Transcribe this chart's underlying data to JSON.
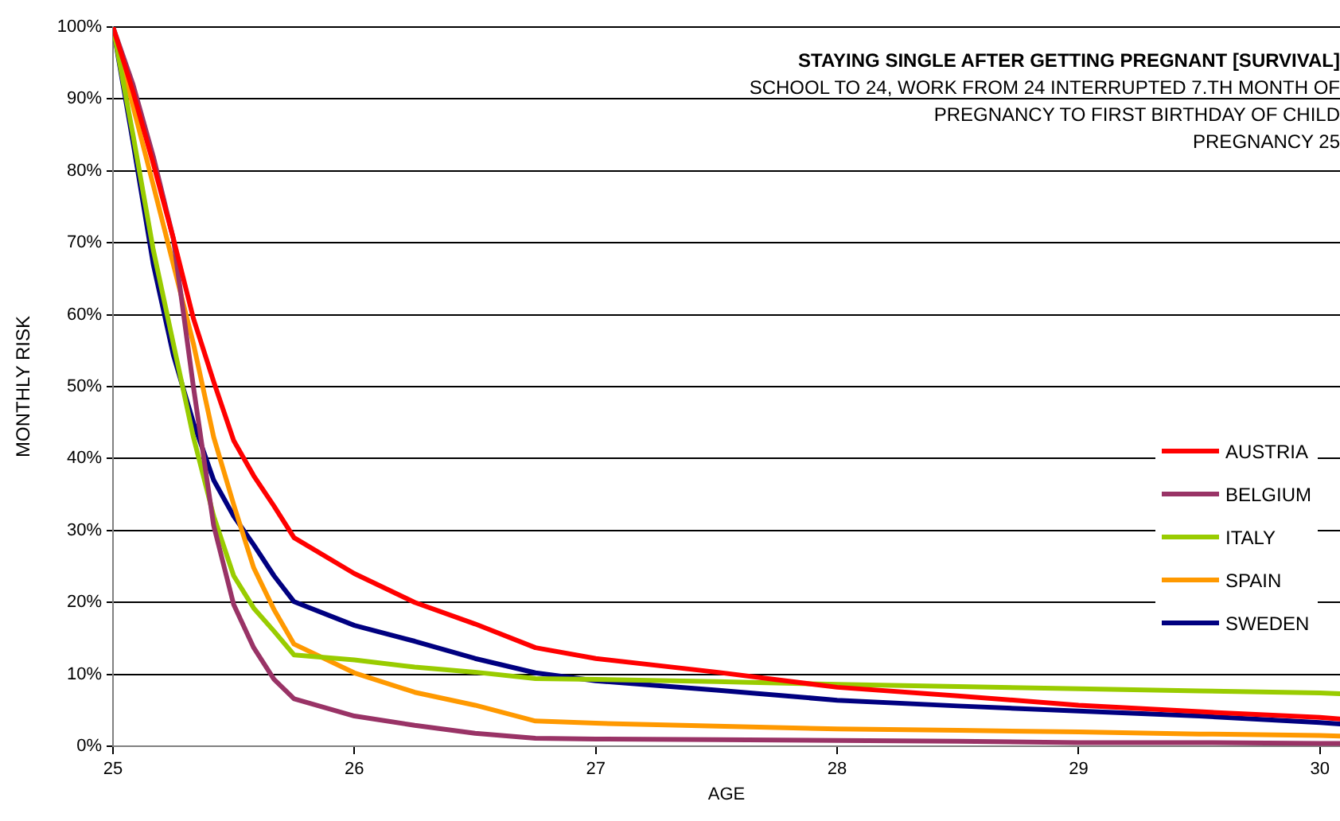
{
  "chart_data": {
    "type": "line",
    "title": "STAYING SINGLE AFTER GETTING PREGNANT [SURVIVAL]",
    "subtitle": "SCHOOL TO 24, WORK FROM 24 INTERRUPTED 7.TH MONTH OF\nPREGNANCY TO FIRST BIRTHDAY OF CHILD\nPREGNANCY 25",
    "xlabel": "AGE",
    "ylabel": "MONTHLY RISK",
    "x": [
      25,
      25.083,
      25.167,
      25.25,
      25.333,
      25.417,
      25.5,
      25.583,
      25.667,
      25.75,
      26,
      26.25,
      26.5,
      26.75,
      27,
      27.5,
      28,
      28.5,
      29,
      29.5,
      30,
      30.083
    ],
    "series": [
      {
        "name": "AUSTRIA",
        "color": "#ff0000",
        "values": [
          100,
          91,
          81,
          70.6,
          59.5,
          50.7,
          42.5,
          37.6,
          33.4,
          29,
          24,
          20,
          17,
          13.7,
          12.2,
          10.3,
          8.2,
          7,
          5.7,
          4.8,
          4,
          3.8
        ]
      },
      {
        "name": "BELGIUM",
        "color": "#993366",
        "values": [
          100,
          92,
          82,
          70.6,
          50,
          30.7,
          19.7,
          13.7,
          9.3,
          6.6,
          4.2,
          2.9,
          1.8,
          1.1,
          1,
          0.9,
          0.8,
          0.7,
          0.5,
          0.5,
          0.4,
          0.4
        ]
      },
      {
        "name": "ITALY",
        "color": "#99cc00",
        "values": [
          100,
          85,
          69,
          56,
          43,
          32,
          23.7,
          19.2,
          16,
          12.7,
          12,
          11,
          10.3,
          9.4,
          9.3,
          9,
          8.6,
          8.3,
          8,
          7.7,
          7.4,
          7.3
        ]
      },
      {
        "name": "SPAIN",
        "color": "#ff9900",
        "values": [
          100,
          89,
          78,
          67,
          56,
          43,
          33.6,
          24.8,
          19,
          14.2,
          10.2,
          7.5,
          5.7,
          3.5,
          3.2,
          2.8,
          2.4,
          2.2,
          2,
          1.7,
          1.5,
          1.4
        ]
      },
      {
        "name": "SWEDEN",
        "color": "#000080",
        "values": [
          100,
          84,
          67,
          54.4,
          45,
          37,
          32,
          28,
          23.7,
          20.1,
          16.8,
          14.6,
          12.2,
          10.2,
          9.1,
          7.8,
          6.4,
          5.6,
          4.9,
          4.2,
          3.3,
          3.1
        ]
      }
    ],
    "xlim": [
      25,
      30.083
    ],
    "xticks": [
      25,
      26,
      27,
      28,
      29,
      30
    ],
    "ylim": [
      0,
      100
    ],
    "yticks": [
      {
        "value": 0,
        "label": "0%"
      },
      {
        "value": 10,
        "label": "10%"
      },
      {
        "value": 20,
        "label": "20%"
      },
      {
        "value": 30,
        "label": "30%"
      },
      {
        "value": 40,
        "label": "40%"
      },
      {
        "value": 50,
        "label": "50%"
      },
      {
        "value": 60,
        "label": "60%"
      },
      {
        "value": 70,
        "label": "70%"
      },
      {
        "value": 80,
        "label": "80%"
      },
      {
        "value": 90,
        "label": "90%"
      },
      {
        "value": 100,
        "label": "100%"
      }
    ],
    "grid": "y",
    "legend": "right",
    "marker": "none",
    "line_style": "solid"
  }
}
